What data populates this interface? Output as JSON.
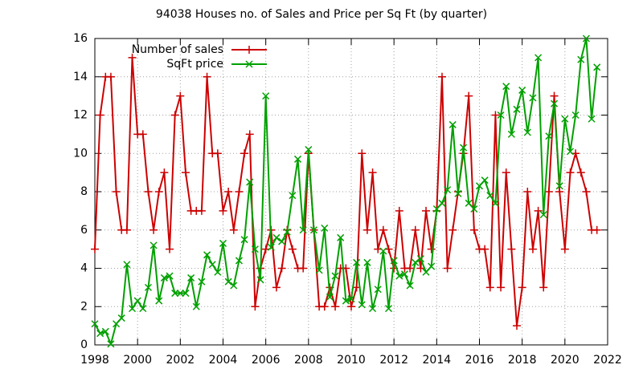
{
  "chart_data": {
    "type": "line",
    "title": "94038 Houses no. of Sales and Price per Sq Ft (by quarter)",
    "x": [
      1998,
      1998.25,
      1998.5,
      1998.75,
      1999,
      1999.25,
      1999.5,
      1999.75,
      2000,
      2000.25,
      2000.5,
      2000.75,
      2001,
      2001.25,
      2001.5,
      2001.75,
      2002,
      2002.25,
      2002.5,
      2002.75,
      2003,
      2003.25,
      2003.5,
      2003.75,
      2004,
      2004.25,
      2004.5,
      2004.75,
      2005,
      2005.25,
      2005.5,
      2005.75,
      2006,
      2006.25,
      2006.5,
      2006.75,
      2007,
      2007.25,
      2007.5,
      2007.75,
      2008,
      2008.25,
      2008.5,
      2008.75,
      2009,
      2009.25,
      2009.5,
      2009.75,
      2010,
      2010.25,
      2010.5,
      2010.75,
      2011,
      2011.25,
      2011.5,
      2011.75,
      2012,
      2012.25,
      2012.5,
      2012.75,
      2013,
      2013.25,
      2013.5,
      2013.75,
      2014,
      2014.25,
      2014.5,
      2014.75,
      2015,
      2015.25,
      2015.5,
      2015.75,
      2016,
      2016.25,
      2016.5,
      2016.75,
      2017,
      2017.25,
      2017.5,
      2017.75,
      2018,
      2018.25,
      2018.5,
      2018.75,
      2019,
      2019.25,
      2019.5,
      2019.75,
      2020,
      2020.25,
      2020.5,
      2020.75,
      2021,
      2021.25,
      2021.5
    ],
    "series": [
      {
        "name": "Number of sales",
        "color": "#cc0000",
        "marker": "+",
        "values": [
          5,
          12,
          14,
          14,
          8,
          6,
          6,
          15,
          11,
          11,
          8,
          6,
          8,
          9,
          5,
          12,
          13,
          9,
          7,
          7,
          7,
          14,
          10,
          10,
          7,
          8,
          6,
          8,
          10,
          11,
          2,
          4,
          5,
          6,
          3,
          4,
          6,
          5,
          4,
          4,
          10,
          6,
          2,
          2,
          3,
          2,
          4,
          4,
          2,
          3,
          10,
          6,
          9,
          5,
          6,
          5,
          4,
          7,
          4,
          4,
          6,
          4,
          7,
          5,
          7,
          14,
          4,
          6,
          8,
          10,
          13,
          6,
          5,
          5,
          3,
          12,
          3,
          9,
          5,
          1,
          3,
          8,
          5,
          7,
          3,
          8,
          13,
          8,
          5,
          9,
          10,
          9,
          8,
          6,
          6
        ]
      },
      {
        "name": "SqFt price",
        "color": "#00a000",
        "marker": "x",
        "values": [
          1.1,
          0.6,
          0.7,
          0.05,
          1.1,
          1.4,
          4.2,
          1.9,
          2.3,
          1.9,
          3.0,
          5.2,
          2.3,
          3.5,
          3.6,
          2.7,
          2.7,
          2.7,
          3.5,
          2.0,
          3.3,
          4.7,
          4.2,
          3.8,
          5.3,
          3.3,
          3.1,
          4.4,
          5.5,
          8.5,
          5.0,
          3.4,
          13.0,
          5.1,
          5.6,
          5.4,
          5.9,
          7.8,
          9.7,
          6.0,
          10.2,
          6.0,
          3.9,
          6.1,
          2.5,
          3.6,
          5.6,
          2.3,
          2.4,
          4.3,
          2.1,
          4.3,
          1.9,
          2.9,
          4.9,
          1.9,
          4.4,
          3.6,
          3.7,
          3.1,
          4.3,
          4.5,
          3.8,
          4.1,
          7.1,
          7.4,
          8.1,
          11.5,
          7.9,
          10.3,
          7.4,
          7.1,
          8.3,
          8.6,
          7.8,
          7.4,
          12.0,
          13.5,
          11.0,
          12.3,
          13.3,
          11.1,
          12.9,
          15.0,
          6.8,
          10.9,
          12.6,
          8.3,
          11.8,
          10.1,
          12.0,
          14.9,
          16.0,
          11.8,
          14.5
        ]
      }
    ],
    "xlim": [
      1998,
      2022
    ],
    "xticks": [
      1998,
      2000,
      2002,
      2004,
      2006,
      2008,
      2010,
      2012,
      2014,
      2016,
      2018,
      2020,
      2022
    ],
    "ylim": [
      0,
      16
    ],
    "yticks": [
      0,
      2,
      4,
      6,
      8,
      10,
      12,
      14,
      16
    ],
    "grid": true,
    "legend": "top-left"
  }
}
